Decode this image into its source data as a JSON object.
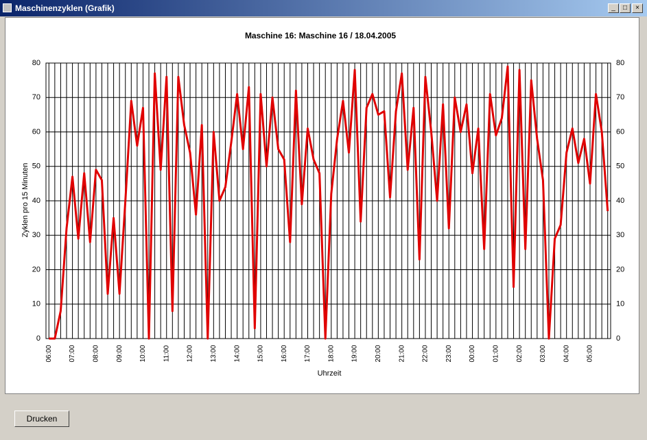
{
  "window": {
    "title": "Maschinenzyklen (Grafik)"
  },
  "button": {
    "label": "Drucken"
  },
  "chart_data": {
    "type": "line",
    "title": "Maschine 16: Maschine 16  /  18.04.2005",
    "y_label": "Zyklen pro 15 Minuten",
    "x_label": "Uhrzeit",
    "categories": [
      "06:00",
      null,
      null,
      null,
      "07:00",
      null,
      null,
      null,
      "08:00",
      null,
      null,
      null,
      "09:00",
      null,
      null,
      null,
      "10:00",
      null,
      null,
      null,
      "11:00",
      null,
      null,
      null,
      "12:00",
      null,
      null,
      null,
      "13:00",
      null,
      null,
      null,
      "14:00",
      null,
      null,
      null,
      "15:00",
      null,
      null,
      null,
      "16:00",
      null,
      null,
      null,
      "17:00",
      null,
      null,
      null,
      "18:00",
      null,
      null,
      null,
      "19:00",
      null,
      null,
      null,
      "20:00",
      null,
      null,
      null,
      "21:00",
      null,
      null,
      null,
      "22:00",
      null,
      null,
      null,
      "23:00",
      null,
      null,
      null,
      "00:00",
      null,
      null,
      null,
      "01:00",
      null,
      null,
      null,
      "02:00",
      null,
      null,
      null,
      "03:00",
      null,
      null,
      null,
      "04:00",
      null,
      null,
      null,
      "05:00",
      null,
      null,
      null
    ],
    "values": [
      0,
      0,
      8,
      32,
      47,
      29,
      48,
      28,
      49,
      46,
      13,
      35,
      13,
      40,
      69,
      56,
      67,
      0,
      77,
      49,
      76,
      8,
      76,
      62,
      54,
      36,
      62,
      0,
      60,
      40,
      44,
      57,
      71,
      55,
      73,
      3,
      71,
      50,
      70,
      55,
      52,
      28,
      72,
      39,
      61,
      52,
      48,
      0,
      42,
      58,
      69,
      54,
      78,
      34,
      67,
      71,
      65,
      66,
      41,
      66,
      77,
      49,
      67,
      23,
      76,
      60,
      40,
      68,
      32,
      70,
      60,
      68,
      48,
      61,
      26,
      71,
      59,
      64,
      79,
      15,
      78,
      26,
      75,
      58,
      46,
      0,
      29,
      33,
      54,
      61,
      51,
      58,
      45,
      71,
      60,
      37
    ],
    "color": "#e00000",
    "ylim": [
      0,
      80
    ],
    "yticks": [
      0,
      10,
      20,
      30,
      40,
      50,
      60,
      70,
      80
    ],
    "grid": true,
    "mirror_y_axis": true
  }
}
